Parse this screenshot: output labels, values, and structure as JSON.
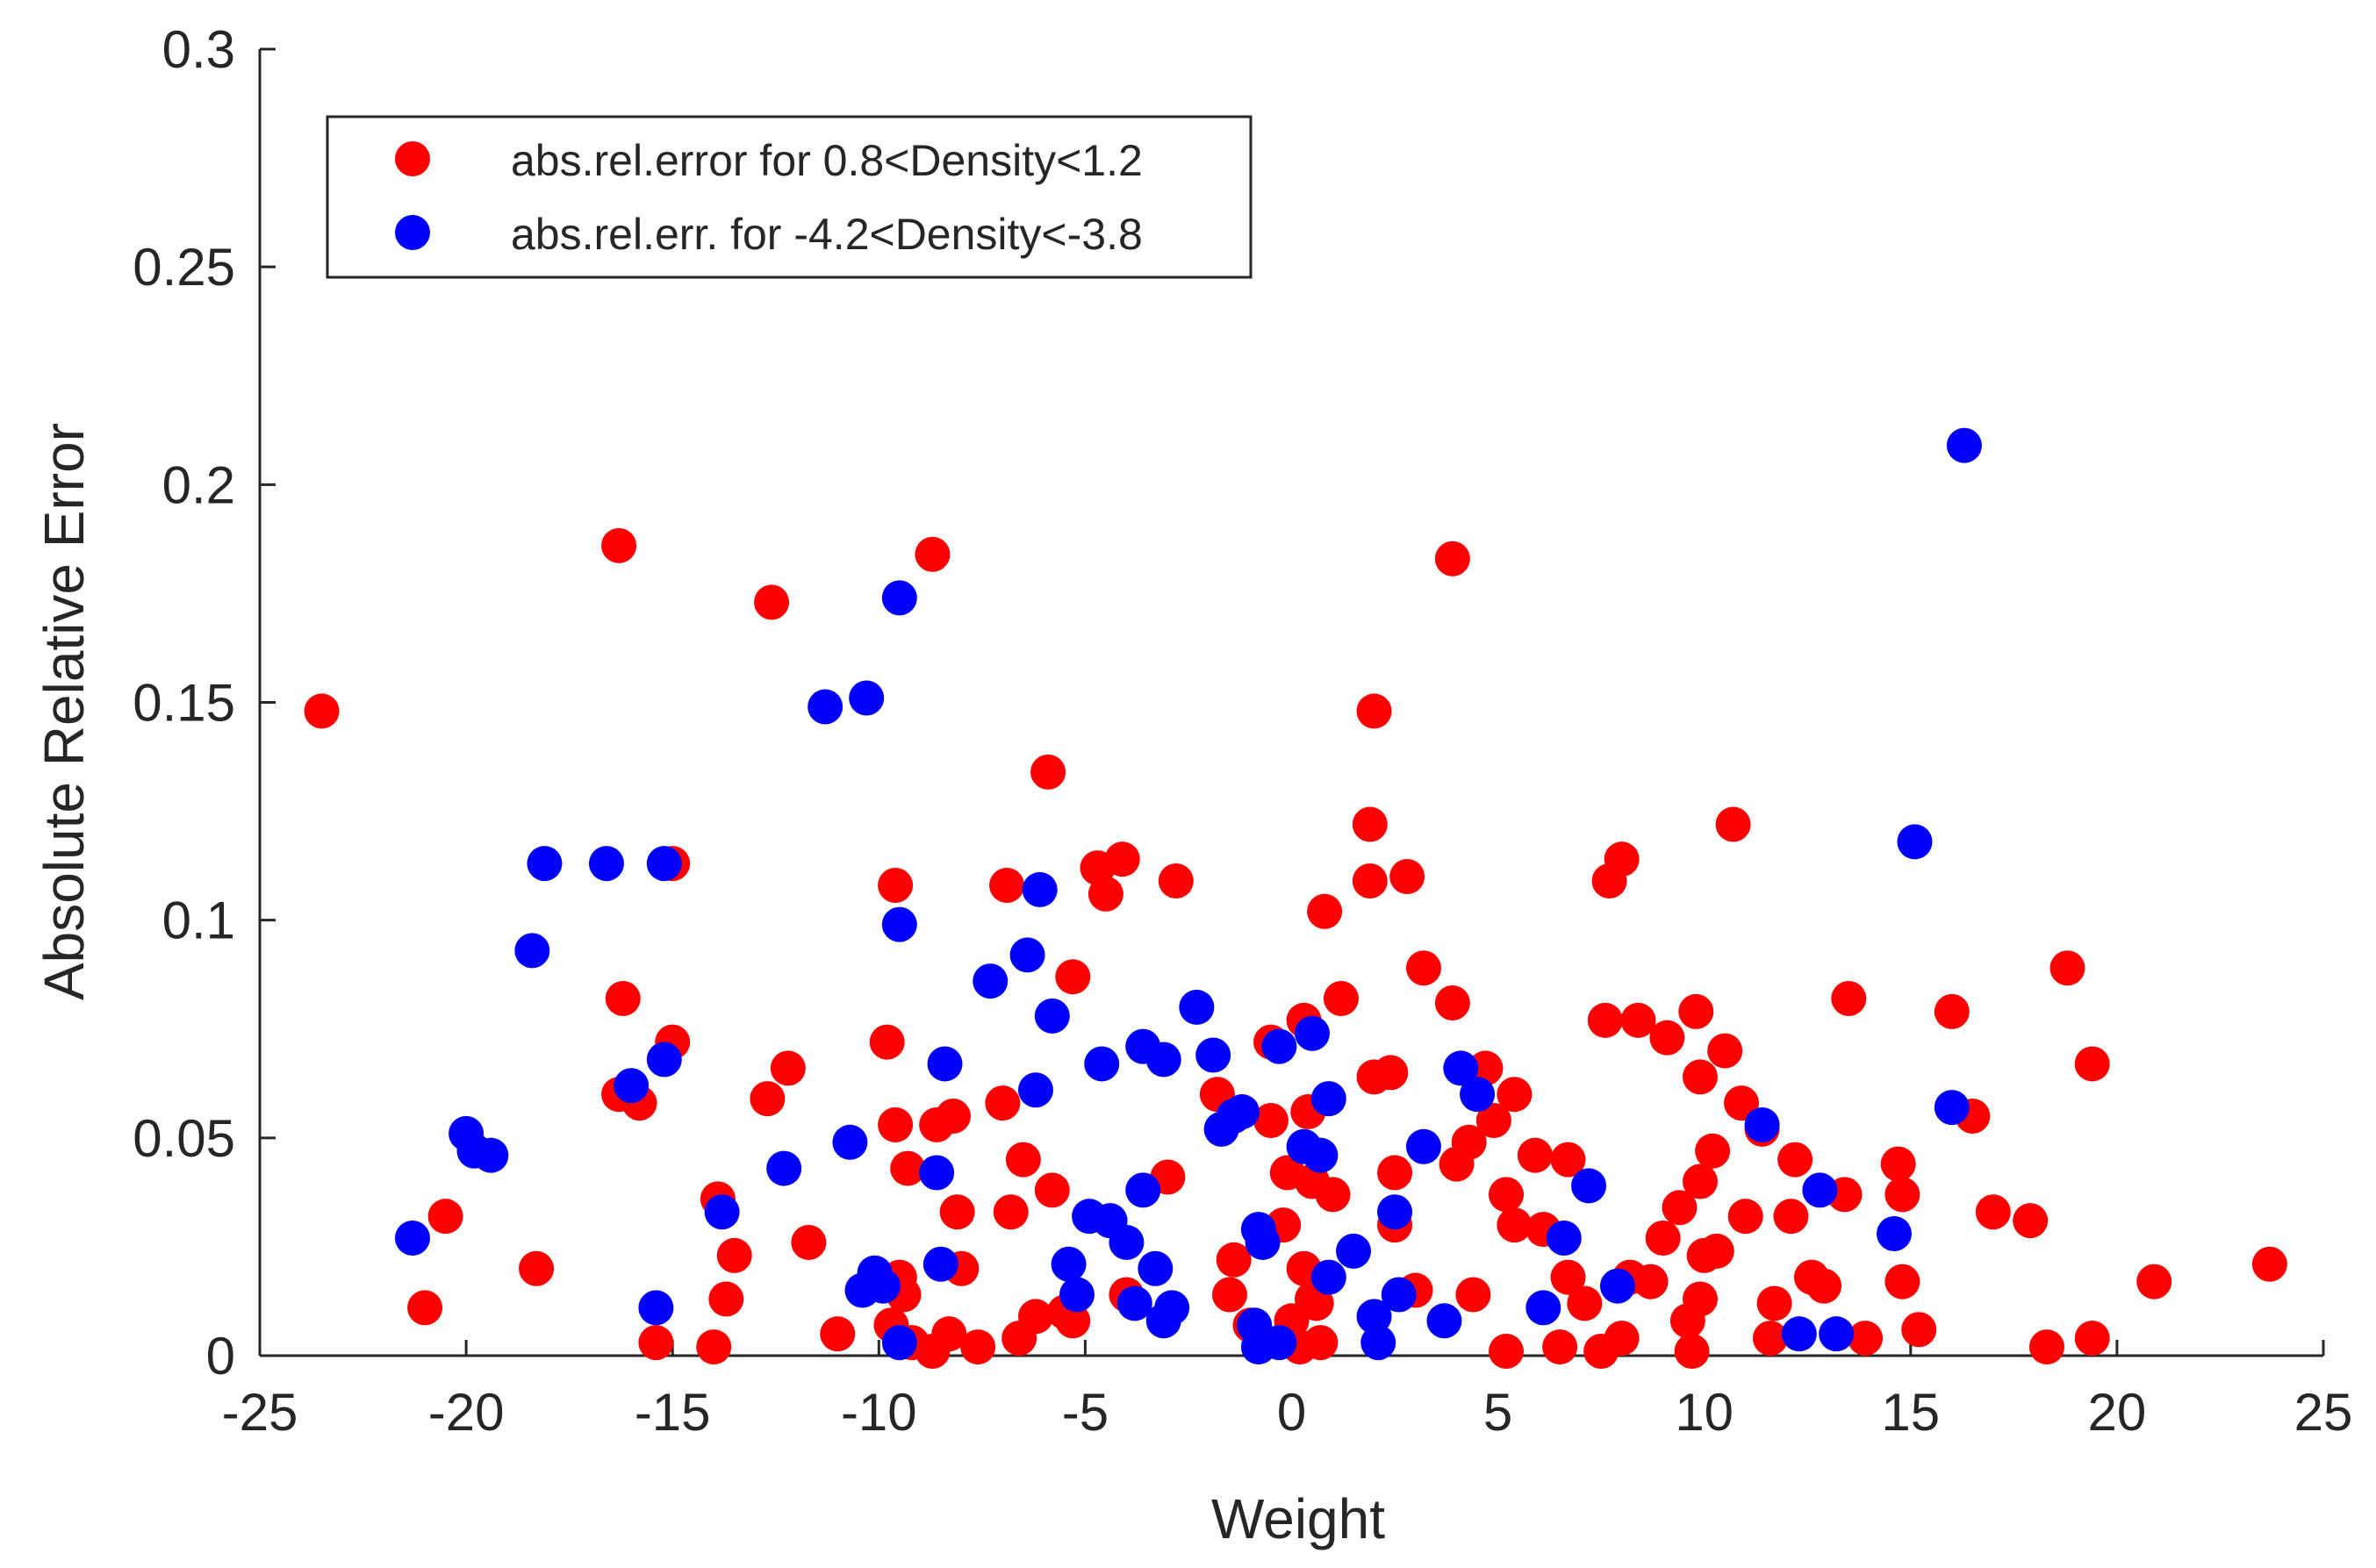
{
  "chart_data": {
    "type": "scatter",
    "title": "",
    "xlabel": "Weight",
    "ylabel": "Absolute Relative Error",
    "xlim": [
      -25,
      25
    ],
    "ylim": [
      0,
      0.3
    ],
    "x_ticks": [
      -25,
      -20,
      -15,
      -10,
      -5,
      0,
      5,
      10,
      15,
      20,
      25
    ],
    "y_ticks": [
      0,
      0.05,
      0.1,
      0.15,
      0.2,
      0.25,
      0.3
    ],
    "x_tick_labels": [
      "-25",
      "-20",
      "-15",
      "-10",
      "-5",
      "0",
      "5",
      "10",
      "15",
      "20",
      "25"
    ],
    "y_tick_labels": [
      "0",
      "0.05",
      "0.1",
      "0.15",
      "0.2",
      "0.25",
      "0.3"
    ],
    "grid": false,
    "legend_position": "top-left",
    "series": [
      {
        "name": "abs.rel.error for 0.8<Density<1.2",
        "color": "#ff0000",
        "points": [
          [
            -23.5,
            0.148
          ],
          [
            -21.0,
            0.011
          ],
          [
            -20.5,
            0.032
          ],
          [
            -18.3,
            0.02
          ],
          [
            -16.3,
            0.186
          ],
          [
            -16.2,
            0.082
          ],
          [
            -16.3,
            0.06
          ],
          [
            -15.8,
            0.058
          ],
          [
            -15.0,
            0.113
          ],
          [
            -15.0,
            0.072
          ],
          [
            -15.4,
            0.003
          ],
          [
            -14.0,
            0.002
          ],
          [
            -13.9,
            0.036
          ],
          [
            -13.7,
            0.013
          ],
          [
            -13.5,
            0.023
          ],
          [
            -12.6,
            0.173
          ],
          [
            -12.7,
            0.059
          ],
          [
            -12.2,
            0.066
          ],
          [
            -11.7,
            0.026
          ],
          [
            -11.0,
            0.005
          ],
          [
            -9.6,
            0.108
          ],
          [
            -9.8,
            0.072
          ],
          [
            -9.6,
            0.053
          ],
          [
            -9.3,
            0.043
          ],
          [
            -9.5,
            0.018
          ],
          [
            -9.4,
            0.014
          ],
          [
            -9.7,
            0.007
          ],
          [
            -9.2,
            0.003
          ],
          [
            -8.7,
            0.184
          ],
          [
            -8.6,
            0.053
          ],
          [
            -8.2,
            0.055
          ],
          [
            -8.1,
            0.033
          ],
          [
            -8.0,
            0.02
          ],
          [
            -8.3,
            0.005
          ],
          [
            -8.7,
            0.001
          ],
          [
            -7.6,
            0.002
          ],
          [
            -6.9,
            0.108
          ],
          [
            -7.0,
            0.058
          ],
          [
            -6.5,
            0.045
          ],
          [
            -6.8,
            0.033
          ],
          [
            -6.6,
            0.004
          ],
          [
            -6.2,
            0.009
          ],
          [
            -5.9,
            0.134
          ],
          [
            -5.8,
            0.038
          ],
          [
            -5.5,
            0.01
          ],
          [
            -5.3,
            0.087
          ],
          [
            -5.3,
            0.008
          ],
          [
            -4.7,
            0.112
          ],
          [
            -4.5,
            0.106
          ],
          [
            -4.1,
            0.114
          ],
          [
            -4.0,
            0.014
          ],
          [
            -3.0,
            0.041
          ],
          [
            -2.8,
            0.109
          ],
          [
            -1.8,
            0.06
          ],
          [
            -1.4,
            0.022
          ],
          [
            -1.5,
            0.014
          ],
          [
            -1.0,
            0.007
          ],
          [
            -0.5,
            0.054
          ],
          [
            -0.5,
            0.072
          ],
          [
            -0.2,
            0.03
          ],
          [
            -0.1,
            0.042
          ],
          [
            0.3,
            0.077
          ],
          [
            0.4,
            0.056
          ],
          [
            0.5,
            0.04
          ],
          [
            0.3,
            0.02
          ],
          [
            0.6,
            0.012
          ],
          [
            0.0,
            0.008
          ],
          [
            0.7,
            0.003
          ],
          [
            0.8,
            0.102
          ],
          [
            1.2,
            0.082
          ],
          [
            1.0,
            0.037
          ],
          [
            0.5,
            0.013
          ],
          [
            0.2,
            0.002
          ],
          [
            1.9,
            0.122
          ],
          [
            2.0,
            0.148
          ],
          [
            1.9,
            0.109
          ],
          [
            2.0,
            0.064
          ],
          [
            2.4,
            0.065
          ],
          [
            2.5,
            0.042
          ],
          [
            2.5,
            0.03
          ],
          [
            2.8,
            0.11
          ],
          [
            3.2,
            0.089
          ],
          [
            3.0,
            0.015
          ],
          [
            3.9,
            0.183
          ],
          [
            3.9,
            0.081
          ],
          [
            4.0,
            0.044
          ],
          [
            4.3,
            0.049
          ],
          [
            4.4,
            0.014
          ],
          [
            4.7,
            0.066
          ],
          [
            4.9,
            0.054
          ],
          [
            5.2,
            0.037
          ],
          [
            5.4,
            0.06
          ],
          [
            5.4,
            0.03
          ],
          [
            5.2,
            0.001
          ],
          [
            5.9,
            0.046
          ],
          [
            6.1,
            0.029
          ],
          [
            6.5,
            0.002
          ],
          [
            6.7,
            0.045
          ],
          [
            6.7,
            0.018
          ],
          [
            7.1,
            0.012
          ],
          [
            7.5,
            0.001
          ],
          [
            7.6,
            0.077
          ],
          [
            7.7,
            0.109
          ],
          [
            8.0,
            0.114
          ],
          [
            8.2,
            0.018
          ],
          [
            8.0,
            0.004
          ],
          [
            8.4,
            0.077
          ],
          [
            8.7,
            0.017
          ],
          [
            9.0,
            0.027
          ],
          [
            9.1,
            0.073
          ],
          [
            9.4,
            0.034
          ],
          [
            9.6,
            0.008
          ],
          [
            9.7,
            0.001
          ],
          [
            9.8,
            0.079
          ],
          [
            9.9,
            0.064
          ],
          [
            9.9,
            0.04
          ],
          [
            10.0,
            0.023
          ],
          [
            9.9,
            0.013
          ],
          [
            10.2,
            0.047
          ],
          [
            10.3,
            0.024
          ],
          [
            10.5,
            0.07
          ],
          [
            10.7,
            0.122
          ],
          [
            10.9,
            0.058
          ],
          [
            11.0,
            0.032
          ],
          [
            11.4,
            0.052
          ],
          [
            11.7,
            0.012
          ],
          [
            11.6,
            0.004
          ],
          [
            12.2,
            0.045
          ],
          [
            12.1,
            0.032
          ],
          [
            12.6,
            0.018
          ],
          [
            12.9,
            0.016
          ],
          [
            13.4,
            0.037
          ],
          [
            13.5,
            0.082
          ],
          [
            13.9,
            0.004
          ],
          [
            14.7,
            0.044
          ],
          [
            14.8,
            0.037
          ],
          [
            14.8,
            0.017
          ],
          [
            15.2,
            0.006
          ],
          [
            16.0,
            0.079
          ],
          [
            16.5,
            0.055
          ],
          [
            17.0,
            0.033
          ],
          [
            17.9,
            0.031
          ],
          [
            18.3,
            0.002
          ],
          [
            18.8,
            0.089
          ],
          [
            19.4,
            0.067
          ],
          [
            19.4,
            0.004
          ],
          [
            20.9,
            0.017
          ],
          [
            23.7,
            0.021
          ]
        ]
      },
      {
        "name": "abs.rel.err. for -4.2<Density<-3.8",
        "color": "#0000ff",
        "points": [
          [
            -21.3,
            0.027
          ],
          [
            -20.0,
            0.051
          ],
          [
            -19.8,
            0.047
          ],
          [
            -19.4,
            0.046
          ],
          [
            -18.4,
            0.093
          ],
          [
            -18.1,
            0.113
          ],
          [
            -16.6,
            0.113
          ],
          [
            -16.0,
            0.062
          ],
          [
            -15.4,
            0.011
          ],
          [
            -15.2,
            0.068
          ],
          [
            -15.2,
            0.113
          ],
          [
            -13.8,
            0.033
          ],
          [
            -12.3,
            0.043
          ],
          [
            -11.3,
            0.149
          ],
          [
            -10.7,
            0.049
          ],
          [
            -10.3,
            0.151
          ],
          [
            -10.1,
            0.019
          ],
          [
            -10.4,
            0.015
          ],
          [
            -9.9,
            0.016
          ],
          [
            -9.5,
            0.174
          ],
          [
            -9.5,
            0.099
          ],
          [
            -9.5,
            0.003
          ],
          [
            -8.6,
            0.042
          ],
          [
            -8.4,
            0.067
          ],
          [
            -8.5,
            0.021
          ],
          [
            -7.3,
            0.086
          ],
          [
            -6.4,
            0.092
          ],
          [
            -6.1,
            0.107
          ],
          [
            -6.2,
            0.061
          ],
          [
            -5.8,
            0.078
          ],
          [
            -5.4,
            0.021
          ],
          [
            -5.2,
            0.014
          ],
          [
            -4.9,
            0.032
          ],
          [
            -4.6,
            0.067
          ],
          [
            -4.4,
            0.031
          ],
          [
            -4.0,
            0.026
          ],
          [
            -3.8,
            0.012
          ],
          [
            -3.6,
            0.071
          ],
          [
            -3.6,
            0.038
          ],
          [
            -3.3,
            0.02
          ],
          [
            -3.1,
            0.068
          ],
          [
            -3.1,
            0.008
          ],
          [
            -2.9,
            0.011
          ],
          [
            -2.3,
            0.08
          ],
          [
            -1.9,
            0.069
          ],
          [
            -1.7,
            0.052
          ],
          [
            -1.4,
            0.055
          ],
          [
            -1.2,
            0.056
          ],
          [
            -0.9,
            0.007
          ],
          [
            -0.8,
            0.002
          ],
          [
            -0.8,
            0.029
          ],
          [
            -0.7,
            0.026
          ],
          [
            -0.3,
            0.071
          ],
          [
            -0.3,
            0.003
          ],
          [
            0.3,
            0.048
          ],
          [
            0.5,
            0.074
          ],
          [
            0.7,
            0.046
          ],
          [
            0.9,
            0.059
          ],
          [
            0.9,
            0.018
          ],
          [
            1.5,
            0.024
          ],
          [
            2.0,
            0.009
          ],
          [
            2.1,
            0.003
          ],
          [
            2.5,
            0.033
          ],
          [
            2.6,
            0.014
          ],
          [
            3.2,
            0.048
          ],
          [
            3.7,
            0.008
          ],
          [
            4.1,
            0.066
          ],
          [
            4.5,
            0.06
          ],
          [
            6.1,
            0.011
          ],
          [
            6.6,
            0.027
          ],
          [
            7.2,
            0.039
          ],
          [
            7.9,
            0.016
          ],
          [
            11.4,
            0.053
          ],
          [
            12.3,
            0.005
          ],
          [
            12.8,
            0.038
          ],
          [
            13.2,
            0.005
          ],
          [
            14.6,
            0.028
          ],
          [
            15.1,
            0.118
          ],
          [
            16.0,
            0.057
          ],
          [
            16.3,
            0.209
          ]
        ]
      }
    ]
  }
}
